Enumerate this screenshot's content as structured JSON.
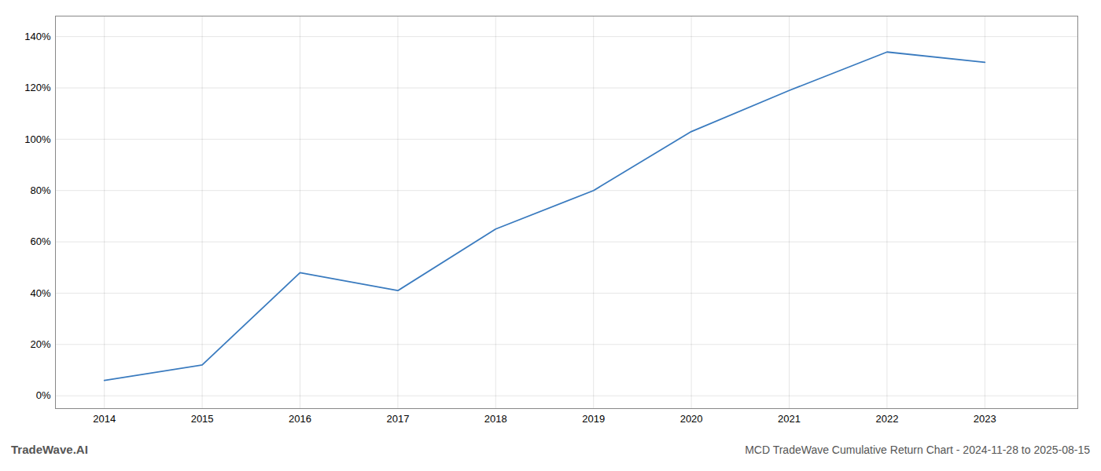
{
  "chart_data": {
    "type": "line",
    "title": "MCD TradeWave Cumulative Return Chart - 2024-11-28 to 2025-08-15",
    "annotations": [
      "TradeWave.AI"
    ],
    "x": [
      2014,
      2015,
      2016,
      2017,
      2018,
      2019,
      2020,
      2021,
      2022,
      2023
    ],
    "values": [
      6,
      12,
      48,
      41,
      65,
      80,
      103,
      119,
      134,
      130
    ],
    "color": "#3a7bbf",
    "xlim": [
      2013.5,
      2023.95
    ],
    "xticks": [
      2014,
      2015,
      2016,
      2017,
      2018,
      2019,
      2020,
      2021,
      2022,
      2023
    ],
    "ylim": [
      -5,
      148
    ],
    "yticks": [
      {
        "value": 0,
        "label": "0%"
      },
      {
        "value": 20,
        "label": "20%"
      },
      {
        "value": 40,
        "label": "40%"
      },
      {
        "value": 60,
        "label": "60%"
      },
      {
        "value": 80,
        "label": "80%"
      },
      {
        "value": 100,
        "label": "100%"
      },
      {
        "value": 120,
        "label": "120%"
      },
      {
        "value": 140,
        "label": "140%"
      }
    ],
    "grid": true
  }
}
